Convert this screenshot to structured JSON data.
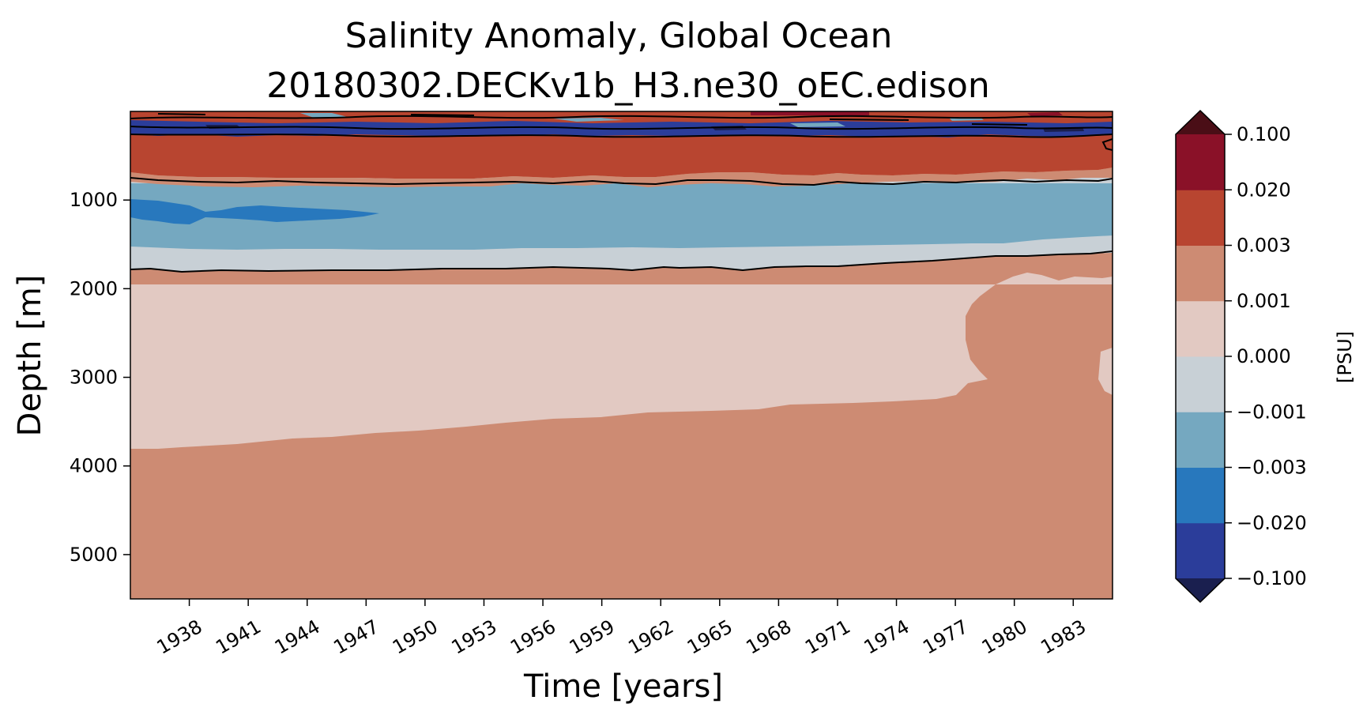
{
  "chart_data": {
    "type": "heatmap",
    "subtype": "filled-contour (Hovmoller: time vs depth)",
    "title_line1": "Salinity Anomaly, Global Ocean",
    "title_line2": "20180302.DECKv1b_H3.ne30_oEC.edison",
    "xlabel": "Time [years]",
    "ylabel": "Depth [m]",
    "xlim": [
      1935.0,
      1985.0
    ],
    "ylim": [
      5500,
      0
    ],
    "xticks": [
      "1938",
      "1941",
      "1944",
      "1947",
      "1950",
      "1953",
      "1956",
      "1959",
      "1962",
      "1965",
      "1968",
      "1971",
      "1974",
      "1977",
      "1980",
      "1983"
    ],
    "yticks": [
      "1000",
      "2000",
      "3000",
      "4000",
      "5000"
    ],
    "colorbar": {
      "label": "[PSU]",
      "levels": [
        "−0.100",
        "−0.020",
        "−0.003",
        "−0.001",
        "0.000",
        "0.001",
        "0.003",
        "0.020",
        "0.100"
      ],
      "colors": [
        "#1a1f4f",
        "#2b3d9a",
        "#2878bd",
        "#75a8c0",
        "#c8d0d6",
        "#e2c9c2",
        "#cd8b73",
        "#b84530",
        "#8a1128",
        "#4a0e16"
      ],
      "extend": "both"
    },
    "contour_levels": [
      "-0.001",
      "0.000"
    ],
    "regions": [
      {
        "name": "surface-layer-mixed-anomalies",
        "depth_range": [
          0,
          200
        ],
        "value_class": "mixed −0.100 to 0.100"
      },
      {
        "name": "upper-positive-band",
        "depth_range": [
          200,
          760
        ],
        "value_class": "0.003 to 0.020"
      },
      {
        "name": "mid-negative-band",
        "depth_range": [
          850,
          1500
        ],
        "value_class": "−0.003 to −0.001"
      },
      {
        "name": "mid-strong-negative-patch",
        "x_range": [
          1935,
          1947.5
        ],
        "depth_range": [
          1000,
          1250
        ],
        "value_class": "−0.020 to −0.003"
      },
      {
        "name": "zero-band",
        "depth_range": [
          1500,
          1800
        ],
        "value_class": "−0.001 to 0.000"
      },
      {
        "name": "deep-weak-positive",
        "depth_range": [
          1800,
          3800
        ],
        "value_class": "0.000 to 0.001"
      },
      {
        "name": "bottom-positive",
        "depth_range": [
          3200,
          5500
        ],
        "value_class": "0.001 to 0.003"
      }
    ],
    "series": [
      {
        "name": "zero-contour-upper",
        "x": [
          1935,
          1938,
          1941,
          1944,
          1947,
          1950,
          1953,
          1956,
          1959,
          1962,
          1965,
          1968,
          1971,
          1974,
          1977,
          1980,
          1983,
          1985
        ],
        "y": [
          760,
          790,
          800,
          790,
          800,
          810,
          795,
          790,
          790,
          790,
          770,
          800,
          800,
          790,
          790,
          780,
          800,
          760
        ]
      },
      {
        "name": "zero-contour-lower",
        "x": [
          1935,
          1938,
          1941,
          1944,
          1947,
          1950,
          1953,
          1956,
          1959,
          1962,
          1965,
          1968,
          1971,
          1974,
          1977,
          1980,
          1983,
          1985
        ],
        "y": [
          1780,
          1800,
          1790,
          1780,
          1790,
          1800,
          1790,
          1780,
          1770,
          1760,
          1780,
          1730,
          1700,
          1650,
          1620,
          1600,
          1610,
          1580
        ]
      },
      {
        "name": "deep-boundary",
        "x": [
          1935,
          1938,
          1941,
          1944,
          1947,
          1950,
          1953,
          1956,
          1959,
          1962,
          1965,
          1968,
          1971,
          1974,
          1977,
          1980,
          1983,
          1985
        ],
        "y": [
          3800,
          3750,
          3730,
          3690,
          3630,
          3600,
          3560,
          3520,
          3460,
          3420,
          3380,
          3350,
          3310,
          3280,
          3250,
          3230,
          3210,
          3200
        ]
      }
    ]
  }
}
